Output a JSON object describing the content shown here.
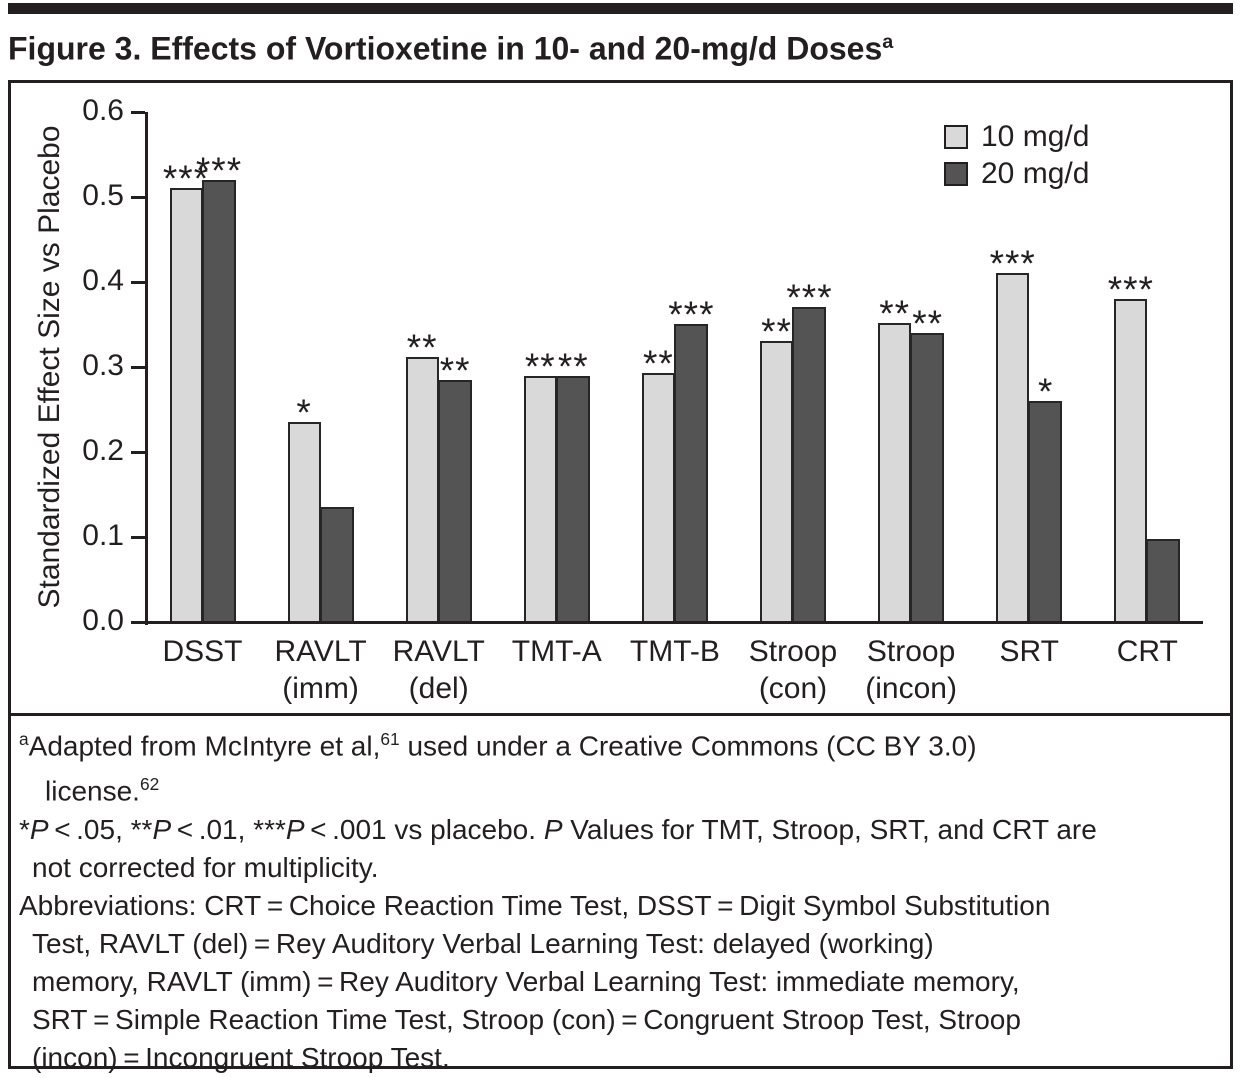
{
  "figure": {
    "title_main": "Figure 3. Effects of Vortioxetine in 10- and 20-mg/d Doses",
    "title_superscript": "a"
  },
  "colors": {
    "ink": "#231f20",
    "bar_light": "#d9d9d9",
    "bar_dark": "#545454"
  },
  "chart_data": {
    "type": "bar",
    "title": "",
    "xlabel": "",
    "ylabel": "Standardized Effect Size vs Placebo",
    "ylim": [
      0,
      0.6
    ],
    "yticks": [
      "0.0",
      "0.1",
      "0.2",
      "0.3",
      "0.4",
      "0.5",
      "0.6"
    ],
    "grid": false,
    "legend_position": "top-right",
    "categories": [
      "DSST",
      "RAVLT (imm)",
      "RAVLT (del)",
      "TMT-A",
      "TMT-B",
      "Stroop (con)",
      "Stroop (incon)",
      "SRT",
      "CRT"
    ],
    "category_label_lines": [
      [
        "DSST"
      ],
      [
        "RAVLT",
        "(imm)"
      ],
      [
        "RAVLT",
        "(del)"
      ],
      [
        "TMT-A"
      ],
      [
        "TMT-B"
      ],
      [
        "Stroop",
        "(con)"
      ],
      [
        "Stroop",
        "(incon)"
      ],
      [
        "SRT"
      ],
      [
        "CRT"
      ]
    ],
    "series": [
      {
        "name": "10 mg/d",
        "color": "#d9d9d9",
        "values": [
          0.51,
          0.235,
          0.312,
          0.29,
          0.293,
          0.33,
          0.352,
          0.41,
          0.38
        ],
        "significance": [
          "***",
          "*",
          "**",
          "**",
          "**",
          "**",
          "**",
          "***",
          "***"
        ]
      },
      {
        "name": "20 mg/d",
        "color": "#545454",
        "values": [
          0.52,
          0.135,
          0.285,
          0.29,
          0.35,
          0.37,
          0.34,
          0.26,
          0.098
        ],
        "significance": [
          "***",
          "",
          "**",
          "**",
          "***",
          "***",
          "**",
          "*",
          ""
        ]
      }
    ]
  },
  "footnotes": {
    "lines": [
      {
        "indent": 0,
        "runs": [
          {
            "t": "a",
            "sup": true
          },
          {
            "t": "Adapted from McIntyre et al,"
          },
          {
            "t": "61",
            "sup": true
          },
          {
            "t": " used under a Creative Commons (CC BY 3.0)"
          }
        ]
      },
      {
        "indent": 2,
        "runs": [
          {
            "t": "license."
          },
          {
            "t": "62",
            "sup": true
          }
        ]
      },
      {
        "indent": 0,
        "runs": [
          {
            "t": "*"
          },
          {
            "t": "P",
            "i": true
          },
          {
            "t": " < .05, **"
          },
          {
            "t": "P",
            "i": true
          },
          {
            "t": " < .01, ***"
          },
          {
            "t": "P",
            "i": true
          },
          {
            "t": " < .001 vs placebo. "
          },
          {
            "t": "P",
            "i": true
          },
          {
            "t": " Values for TMT, Stroop, SRT, and CRT are"
          }
        ]
      },
      {
        "indent": 1,
        "runs": [
          {
            "t": "not corrected for multiplicity."
          }
        ]
      },
      {
        "indent": 0,
        "runs": [
          {
            "t": "Abbreviations: CRT = Choice Reaction Time Test, DSST = Digit Symbol Substitution"
          }
        ]
      },
      {
        "indent": 1,
        "runs": [
          {
            "t": "Test, RAVLT (del) = Rey Auditory Verbal Learning Test: delayed (working)"
          }
        ]
      },
      {
        "indent": 1,
        "runs": [
          {
            "t": "memory, RAVLT (imm) = Rey Auditory Verbal Learning Test: immediate memory,"
          }
        ]
      },
      {
        "indent": 1,
        "runs": [
          {
            "t": "SRT = Simple Reaction Time Test, Stroop (con) = Congruent Stroop Test, Stroop"
          }
        ]
      },
      {
        "indent": 1,
        "runs": [
          {
            "t": "(incon) = Incongruent Stroop Test."
          }
        ]
      }
    ]
  }
}
